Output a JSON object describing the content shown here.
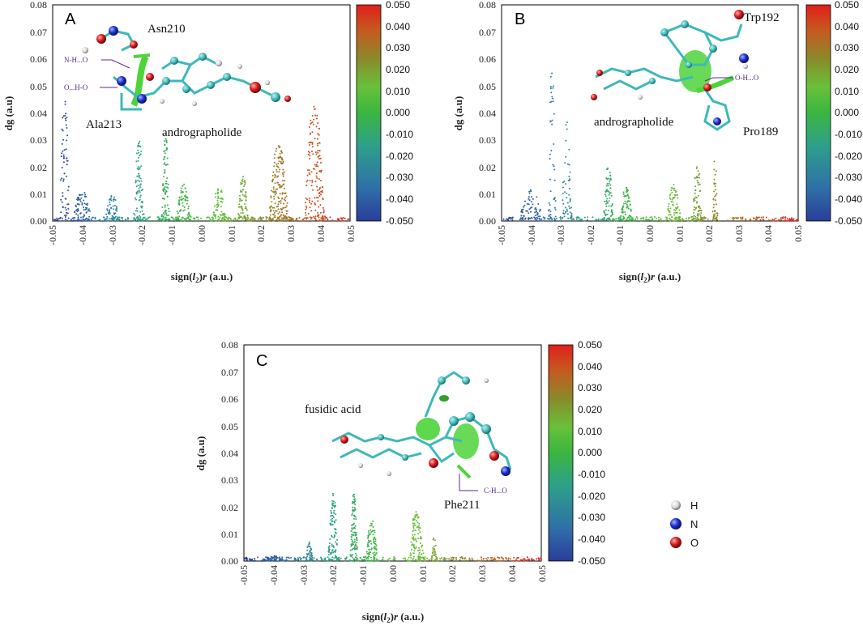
{
  "chart_data": [
    {
      "type": "scatter",
      "panel_letter": "A",
      "xlabel": "sign(l2)r (a.u.)",
      "xlabel_parts": {
        "pre": "sign(",
        "sym": "l",
        "sub": "2",
        "post": ")",
        "var": "r",
        "unit": " (a.u.)"
      },
      "ylabel": "dg (a.u)",
      "xlim": [
        -0.05,
        0.05
      ],
      "ylim": [
        0,
        0.08
      ],
      "x_ticks": [
        "-0.05",
        "-0.04",
        "-0.03",
        "-0.02",
        "-0.01",
        "0.00",
        "0.01",
        "0.02",
        "0.03",
        "0.04",
        "0.05"
      ],
      "y_ticks": [
        "0.00",
        "0.01",
        "0.02",
        "0.03",
        "0.04",
        "0.05",
        "0.06",
        "0.07",
        "0.08"
      ],
      "colorbar": {
        "range": [
          -0.05,
          0.05
        ],
        "ticks": [
          "0.050",
          "0.040",
          "0.030",
          "0.020",
          "0.010",
          "0.000",
          "-0.010",
          "-0.020",
          "-0.030",
          "-0.040",
          "-0.050"
        ]
      },
      "spikes": [
        {
          "center": -0.046,
          "width": 0.004,
          "peak": 0.048,
          "density": 60
        },
        {
          "center": -0.04,
          "width": 0.008,
          "peak": 0.012,
          "density": 80
        },
        {
          "center": -0.03,
          "width": 0.006,
          "peak": 0.01,
          "density": 60
        },
        {
          "center": -0.021,
          "width": 0.004,
          "peak": 0.033,
          "density": 90
        },
        {
          "center": -0.012,
          "width": 0.003,
          "peak": 0.035,
          "density": 90
        },
        {
          "center": -0.006,
          "width": 0.006,
          "peak": 0.014,
          "density": 70
        },
        {
          "center": 0.006,
          "width": 0.006,
          "peak": 0.013,
          "density": 70
        },
        {
          "center": 0.014,
          "width": 0.004,
          "peak": 0.018,
          "density": 70
        },
        {
          "center": 0.026,
          "width": 0.008,
          "peak": 0.03,
          "density": 180
        },
        {
          "center": 0.038,
          "width": 0.008,
          "peak": 0.045,
          "density": 160
        }
      ],
      "annotations": {
        "ligand": "andrographolide",
        "residues": [
          "Asn210",
          "Ala213"
        ],
        "bonds": [
          "N-H...O",
          "O...H-O"
        ]
      }
    },
    {
      "type": "scatter",
      "panel_letter": "B",
      "xlabel": "sign(l2)r (a.u.)",
      "xlabel_parts": {
        "pre": "sign(",
        "sym": "l",
        "sub": "2",
        "post": ")",
        "var": "r",
        "unit": " (a.u.)"
      },
      "ylabel": "dg (a.u)",
      "xlim": [
        -0.05,
        0.05
      ],
      "ylim": [
        0,
        0.08
      ],
      "x_ticks": [
        "-0.05",
        "-0.04",
        "-0.03",
        "-0.02",
        "-0.01",
        "0.00",
        "0.01",
        "0.02",
        "0.03",
        "0.04",
        "0.05"
      ],
      "y_ticks": [
        "0.00",
        "0.01",
        "0.02",
        "0.03",
        "0.04",
        "0.05",
        "0.06",
        "0.07",
        "0.08"
      ],
      "colorbar": {
        "range": [
          -0.05,
          0.05
        ],
        "ticks": [
          "0.050",
          "0.040",
          "0.030",
          "0.020",
          "0.010",
          "0.000",
          "-0.010",
          "-0.020",
          "-0.030",
          "-0.040",
          "-0.050"
        ]
      },
      "spikes": [
        {
          "center": -0.04,
          "width": 0.01,
          "peak": 0.012,
          "density": 60
        },
        {
          "center": -0.033,
          "width": 0.003,
          "peak": 0.063,
          "density": 50
        },
        {
          "center": -0.028,
          "width": 0.004,
          "peak": 0.04,
          "density": 50
        },
        {
          "center": -0.014,
          "width": 0.004,
          "peak": 0.022,
          "density": 80
        },
        {
          "center": -0.008,
          "width": 0.005,
          "peak": 0.013,
          "density": 70
        },
        {
          "center": 0.008,
          "width": 0.006,
          "peak": 0.014,
          "density": 70
        },
        {
          "center": 0.016,
          "width": 0.004,
          "peak": 0.022,
          "density": 70
        },
        {
          "center": 0.022,
          "width": 0.002,
          "peak": 0.027,
          "density": 40
        }
      ],
      "annotations": {
        "ligand": "andrographolide",
        "residues": [
          "Trp192",
          "Pro189"
        ],
        "bonds": [
          "O-H...O"
        ]
      }
    },
    {
      "type": "scatter",
      "panel_letter": "C",
      "xlabel": "sign(l2)r (a.u.)",
      "xlabel_parts": {
        "pre": "sign(",
        "sym": "l",
        "sub": "2",
        "post": ")",
        "var": "r",
        "unit": " (a.u.)"
      },
      "ylabel": "dg (a.u)",
      "xlim": [
        -0.05,
        0.05
      ],
      "ylim": [
        0,
        0.08
      ],
      "x_ticks": [
        "-0.05",
        "-0.04",
        "-0.03",
        "-0.02",
        "-0.01",
        "0.00",
        "0.01",
        "0.02",
        "0.03",
        "0.04",
        "0.05"
      ],
      "y_ticks": [
        "0.00",
        "0.01",
        "0.02",
        "0.03",
        "0.04",
        "0.05",
        "0.06",
        "0.07",
        "0.08"
      ],
      "colorbar": {
        "range": [
          -0.05,
          0.05
        ],
        "ticks": [
          "0.050",
          "0.040",
          "0.030",
          "0.020",
          "0.010",
          "0.000",
          "-0.010",
          "-0.020",
          "-0.030",
          "-0.040",
          "-0.050"
        ]
      },
      "spikes": [
        {
          "center": -0.04,
          "width": 0.01,
          "peak": 0.002,
          "density": 60
        },
        {
          "center": -0.028,
          "width": 0.003,
          "peak": 0.007,
          "density": 40
        },
        {
          "center": -0.02,
          "width": 0.004,
          "peak": 0.026,
          "density": 110
        },
        {
          "center": -0.013,
          "width": 0.003,
          "peak": 0.027,
          "density": 110
        },
        {
          "center": -0.007,
          "width": 0.005,
          "peak": 0.016,
          "density": 90
        },
        {
          "center": 0.008,
          "width": 0.006,
          "peak": 0.019,
          "density": 110
        },
        {
          "center": 0.014,
          "width": 0.002,
          "peak": 0.01,
          "density": 30
        }
      ],
      "annotations": {
        "ligand": "fusidic acid",
        "residues": [
          "Phe211"
        ],
        "bonds": [
          "C-H...O"
        ]
      }
    }
  ],
  "legend": {
    "items": [
      {
        "label": "H",
        "color": "#d9d9d9"
      },
      {
        "label": "N",
        "color": "#1a2fd6"
      },
      {
        "label": "O",
        "color": "#d91a1a"
      }
    ]
  },
  "colors": {
    "colormap": [
      "#2a3d9a",
      "#2f6fa8",
      "#2ea08a",
      "#3bb540",
      "#68c13a",
      "#8a8a2a",
      "#c55a20",
      "#e0201a"
    ],
    "isosurface": "#4dd43a",
    "carbon": "#3fb8b8"
  }
}
